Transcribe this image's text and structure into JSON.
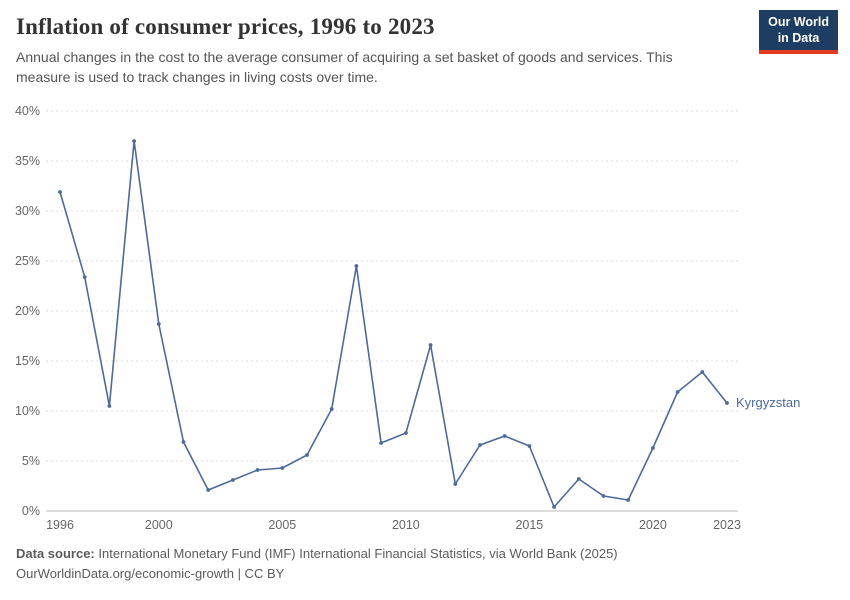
{
  "header": {
    "title": "Inflation of consumer prices, 1996 to 2023",
    "subtitle": "Annual changes in the cost to the average consumer of acquiring a set basket of goods and services. This measure is used to track changes in living costs over time.",
    "logo_line1": "Our World",
    "logo_line2": "in Data",
    "logo_bg_color": "#1d3d63",
    "logo_accent_color": "#e23b22"
  },
  "chart_data": {
    "type": "line",
    "title": "Inflation of consumer prices, 1996 to 2023",
    "xlabel": "",
    "ylabel": "",
    "ylim": [
      0,
      40
    ],
    "yticks": [
      0,
      5,
      10,
      15,
      20,
      25,
      30,
      35,
      40
    ],
    "ytick_suffix": "%",
    "xticks": [
      1996,
      2000,
      2005,
      2010,
      2015,
      2020,
      2023
    ],
    "grid": true,
    "grid_style": "dashed",
    "legend_position": "end-of-line",
    "series": [
      {
        "name": "Kyrgyzstan",
        "color": "#4c6a9c",
        "x": [
          1996,
          1997,
          1998,
          1999,
          2000,
          2001,
          2002,
          2003,
          2004,
          2005,
          2006,
          2007,
          2008,
          2009,
          2010,
          2011,
          2012,
          2013,
          2014,
          2015,
          2016,
          2017,
          2018,
          2019,
          2020,
          2021,
          2022,
          2023
        ],
        "values": [
          31.9,
          23.4,
          10.5,
          37.0,
          18.7,
          6.9,
          2.1,
          3.1,
          4.1,
          4.3,
          5.6,
          10.2,
          24.5,
          6.8,
          7.8,
          16.6,
          2.7,
          6.6,
          7.5,
          6.5,
          0.4,
          3.2,
          1.5,
          1.1,
          6.3,
          11.9,
          13.9,
          10.8
        ]
      }
    ]
  },
  "footer": {
    "source_label": "Data source:",
    "source_text": " International Monetary Fund (IMF) International Financial Statistics, via World Bank (2025)",
    "note": "OurWorldinData.org/economic-growth | CC BY"
  }
}
